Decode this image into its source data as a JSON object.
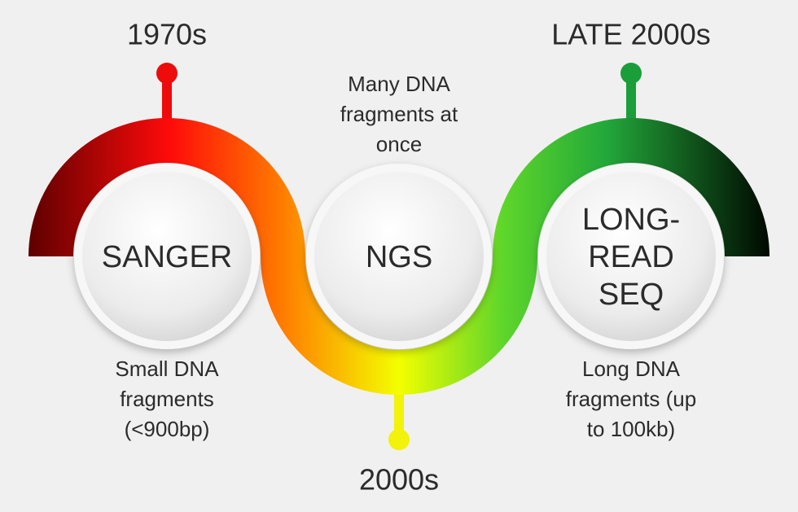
{
  "stages": [
    {
      "era": "1970s",
      "label": [
        "SANGER"
      ],
      "description": [
        "Small DNA",
        "fragments",
        "(<900bp)"
      ]
    },
    {
      "era": "2000s",
      "label": [
        "NGS"
      ],
      "description": [
        "Many DNA",
        "fragments at",
        "once"
      ]
    },
    {
      "era": "LATE 2000s",
      "label": [
        "LONG-",
        "READ",
        "SEQ"
      ],
      "description": [
        "Long DNA",
        "fragments (up",
        "to 100kb)"
      ]
    }
  ]
}
